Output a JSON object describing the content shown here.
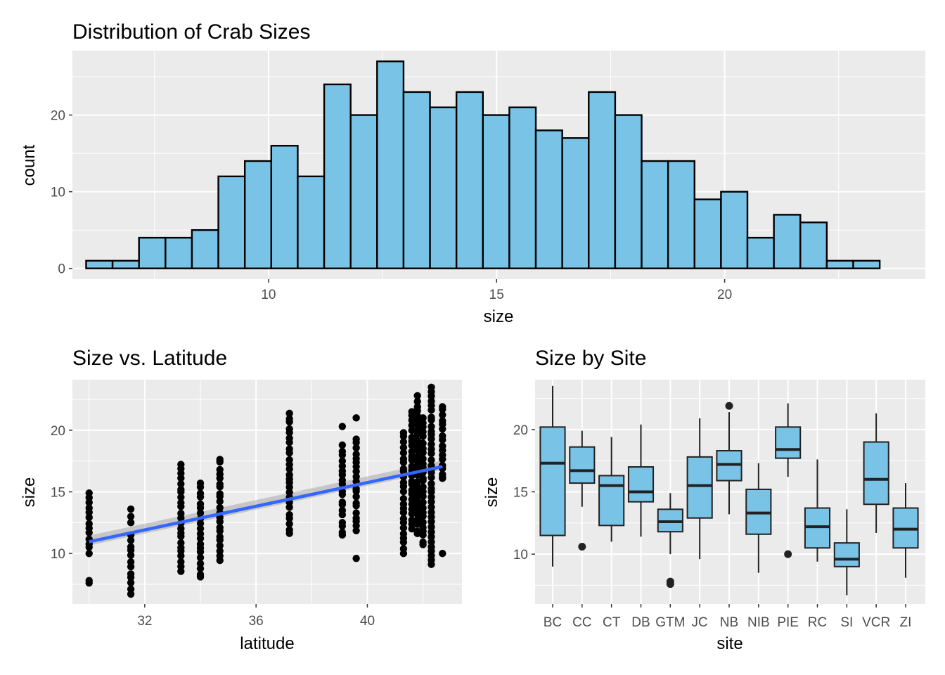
{
  "chart_data": [
    {
      "type": "bar",
      "subtype": "histogram",
      "title": "Distribution of Crab Sizes",
      "xlabel": "size",
      "ylabel": "count",
      "xlim": [
        5.7,
        24.4
      ],
      "ylim": [
        -1.4,
        28.4
      ],
      "xticks": [
        10,
        15,
        20
      ],
      "yticks": [
        0,
        10,
        20
      ],
      "bins": [
        {
          "x0": 6.0,
          "x1": 6.58,
          "count": 1
        },
        {
          "x0": 6.58,
          "x1": 7.16,
          "count": 1
        },
        {
          "x0": 7.16,
          "x1": 7.74,
          "count": 4
        },
        {
          "x0": 7.74,
          "x1": 8.32,
          "count": 4
        },
        {
          "x0": 8.32,
          "x1": 8.9,
          "count": 5
        },
        {
          "x0": 8.9,
          "x1": 9.48,
          "count": 12
        },
        {
          "x0": 9.48,
          "x1": 10.06,
          "count": 14
        },
        {
          "x0": 10.06,
          "x1": 10.64,
          "count": 16
        },
        {
          "x0": 10.64,
          "x1": 11.22,
          "count": 12
        },
        {
          "x0": 11.22,
          "x1": 11.8,
          "count": 24
        },
        {
          "x0": 11.8,
          "x1": 12.38,
          "count": 20
        },
        {
          "x0": 12.38,
          "x1": 12.96,
          "count": 27
        },
        {
          "x0": 12.96,
          "x1": 13.54,
          "count": 23
        },
        {
          "x0": 13.54,
          "x1": 14.12,
          "count": 21
        },
        {
          "x0": 14.12,
          "x1": 14.7,
          "count": 23
        },
        {
          "x0": 14.7,
          "x1": 15.28,
          "count": 20
        },
        {
          "x0": 15.28,
          "x1": 15.86,
          "count": 21
        },
        {
          "x0": 15.86,
          "x1": 16.44,
          "count": 18
        },
        {
          "x0": 16.44,
          "x1": 17.02,
          "count": 17
        },
        {
          "x0": 17.02,
          "x1": 17.6,
          "count": 23
        },
        {
          "x0": 17.6,
          "x1": 18.18,
          "count": 20
        },
        {
          "x0": 18.18,
          "x1": 18.76,
          "count": 14
        },
        {
          "x0": 18.76,
          "x1": 19.34,
          "count": 14
        },
        {
          "x0": 19.34,
          "x1": 19.92,
          "count": 9
        },
        {
          "x0": 19.92,
          "x1": 20.5,
          "count": 10
        },
        {
          "x0": 20.5,
          "x1": 21.08,
          "count": 4
        },
        {
          "x0": 21.08,
          "x1": 21.66,
          "count": 7
        },
        {
          "x0": 21.66,
          "x1": 22.24,
          "count": 6
        },
        {
          "x0": 22.24,
          "x1": 22.82,
          "count": 1
        },
        {
          "x0": 22.82,
          "x1": 23.4,
          "count": 1
        }
      ],
      "colors": {
        "fill": "#78c3e6",
        "outline": "#000000"
      },
      "grid": true,
      "legend": "none"
    },
    {
      "type": "scatter",
      "title": "Size vs. Latitude",
      "xlabel": "latitude",
      "ylabel": "size",
      "xlim": [
        29.4,
        43.4
      ],
      "ylim": [
        5.9,
        24.1
      ],
      "xticks": [
        32,
        36,
        40
      ],
      "yticks": [
        10,
        15,
        20
      ],
      "groups": [
        {
          "x": 30.0,
          "ymin": 10.0,
          "ymax": 14.9,
          "extra": [
            7.6,
            7.8
          ]
        },
        {
          "x": 31.5,
          "ymin": 6.7,
          "ymax": 11.5,
          "extra": [
            12.5,
            13.0,
            13.6
          ]
        },
        {
          "x": 33.3,
          "ymin": 8.5,
          "ymax": 17.3,
          "extra": []
        },
        {
          "x": 34.0,
          "ymin": 8.0,
          "ymax": 15.7,
          "extra": []
        },
        {
          "x": 34.7,
          "ymin": 9.4,
          "ymax": 17.7,
          "extra": []
        },
        {
          "x": 37.2,
          "ymin": 11.6,
          "ymax": 21.4,
          "extra": []
        },
        {
          "x": 39.1,
          "ymin": 11.4,
          "ymax": 18.8,
          "extra": [
            20.3
          ]
        },
        {
          "x": 39.6,
          "ymin": 11.8,
          "ymax": 19.3,
          "extra": [
            9.6,
            21.0
          ]
        },
        {
          "x": 41.3,
          "ymin": 10.0,
          "ymax": 19.8,
          "extra": []
        },
        {
          "x": 41.6,
          "ymin": 12.0,
          "ymax": 21.5,
          "extra": []
        },
        {
          "x": 41.8,
          "ymin": 11.5,
          "ymax": 22.8,
          "extra": []
        },
        {
          "x": 42.0,
          "ymin": 10.6,
          "ymax": 21.0,
          "extra": []
        },
        {
          "x": 42.3,
          "ymin": 9.0,
          "ymax": 23.5,
          "extra": []
        },
        {
          "x": 42.7,
          "ymin": 16.0,
          "ymax": 22.0,
          "extra": [
            10.0,
            16.2
          ]
        }
      ],
      "fit": {
        "method": "lm",
        "x": [
          30.0,
          42.7
        ],
        "y": [
          10.95,
          17.05
        ],
        "se_band": [
          [
            0.5,
            0.3
          ],
          [
            0.25,
            0.5
          ]
        ]
      },
      "colors": {
        "points": "#000000",
        "fit": "#3366ff",
        "band": "#999999"
      },
      "grid": true,
      "legend": "none"
    },
    {
      "type": "box",
      "title": "Size by Site",
      "xlabel": "site",
      "ylabel": "size",
      "ylim": [
        6.0,
        24.0
      ],
      "yticks": [
        10,
        15,
        20
      ],
      "categories": [
        "BC",
        "CC",
        "CT",
        "DB",
        "GTM",
        "JC",
        "NB",
        "NIB",
        "PIE",
        "RC",
        "SI",
        "VCR",
        "ZI"
      ],
      "boxes": [
        {
          "site": "BC",
          "lower": 9.0,
          "q1": 11.5,
          "median": 17.3,
          "q3": 20.2,
          "upper": 23.5,
          "outliers": []
        },
        {
          "site": "CC",
          "lower": 13.8,
          "q1": 15.7,
          "median": 16.7,
          "q3": 18.6,
          "upper": 19.9,
          "outliers": [
            10.6
          ]
        },
        {
          "site": "CT",
          "lower": 11.0,
          "q1": 12.3,
          "median": 15.5,
          "q3": 16.3,
          "upper": 19.4,
          "outliers": []
        },
        {
          "site": "DB",
          "lower": 11.4,
          "q1": 14.2,
          "median": 15.0,
          "q3": 17.0,
          "upper": 20.4,
          "outliers": []
        },
        {
          "site": "GTM",
          "lower": 10.0,
          "q1": 11.8,
          "median": 12.6,
          "q3": 13.6,
          "upper": 14.9,
          "outliers": [
            7.6,
            7.8
          ]
        },
        {
          "site": "JC",
          "lower": 9.6,
          "q1": 12.9,
          "median": 15.5,
          "q3": 17.8,
          "upper": 20.9,
          "outliers": []
        },
        {
          "site": "NB",
          "lower": 13.2,
          "q1": 15.9,
          "median": 17.2,
          "q3": 18.3,
          "upper": 21.4,
          "outliers": [
            21.9
          ]
        },
        {
          "site": "NIB",
          "lower": 8.5,
          "q1": 11.6,
          "median": 13.3,
          "q3": 15.2,
          "upper": 17.3,
          "outliers": []
        },
        {
          "site": "PIE",
          "lower": 16.2,
          "q1": 17.7,
          "median": 18.4,
          "q3": 20.2,
          "upper": 22.1,
          "outliers": [
            10.0
          ]
        },
        {
          "site": "RC",
          "lower": 9.4,
          "q1": 10.5,
          "median": 12.2,
          "q3": 13.7,
          "upper": 17.6,
          "outliers": []
        },
        {
          "site": "SI",
          "lower": 6.7,
          "q1": 9.0,
          "median": 9.6,
          "q3": 10.9,
          "upper": 13.6,
          "outliers": []
        },
        {
          "site": "VCR",
          "lower": 11.7,
          "q1": 14.0,
          "median": 16.0,
          "q3": 19.0,
          "upper": 21.3,
          "outliers": []
        },
        {
          "site": "ZI",
          "lower": 8.1,
          "q1": 10.5,
          "median": 12.0,
          "q3": 13.7,
          "upper": 15.7,
          "outliers": []
        }
      ],
      "colors": {
        "fill": "#78c3e6",
        "outline": "#222222"
      },
      "grid": true,
      "legend": "none"
    }
  ]
}
